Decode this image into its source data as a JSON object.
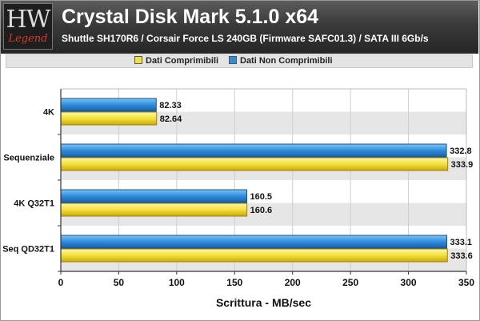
{
  "header": {
    "logo_text": "HW",
    "logo_sub": "Legend",
    "title": "Crystal Disk Mark 5.1.0 x64",
    "subtitle": "Shuttle SH170R6 / Corsair Force LS 240GB (Firmware SAFC01.3) / SATA III 6Gb/s"
  },
  "legend": [
    {
      "label": "Dati Comprimibili",
      "color": "#f4e03a"
    },
    {
      "label": "Dati Non Comprimibili",
      "color": "#2e8ddc"
    }
  ],
  "chart_data": {
    "type": "bar",
    "orientation": "horizontal",
    "categories": [
      "4K",
      "Sequenziale",
      "4K Q32T1",
      "Seq QD32T1"
    ],
    "series": [
      {
        "name": "Dati Non Comprimibili",
        "values": [
          82.33,
          332.8,
          160.5,
          333.1
        ],
        "labels": [
          "82.33",
          "332.8",
          "160.5",
          "333.1"
        ],
        "color": "#2e8ddc"
      },
      {
        "name": "Dati Comprimibili",
        "values": [
          82.64,
          333.9,
          160.6,
          333.6
        ],
        "labels": [
          "82.64",
          "333.9",
          "160.6",
          "333.6"
        ],
        "color": "#f4e03a"
      }
    ],
    "xlabel": "Scrittura - MB/sec",
    "xlim": [
      0,
      350
    ],
    "xticks": [
      0,
      50,
      100,
      150,
      200,
      250,
      300,
      350
    ],
    "grid": "vertical",
    "legend_position": "top"
  }
}
